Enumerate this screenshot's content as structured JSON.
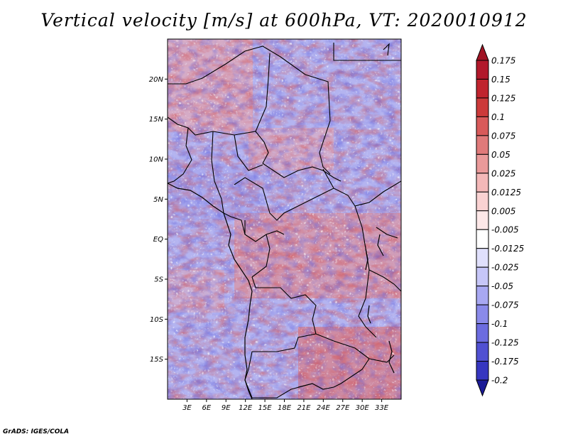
{
  "title": "Vertical velocity [m/s] at 600hPa, VT: 2020010912",
  "credit": "GrADS: IGES/COLA",
  "map": {
    "lon_range": [
      0,
      36
    ],
    "lat_range": [
      -20,
      25
    ],
    "lat_ticks": [
      {
        "lat": 20,
        "label": "20N"
      },
      {
        "lat": 15,
        "label": "15N"
      },
      {
        "lat": 10,
        "label": "10N"
      },
      {
        "lat": 5,
        "label": "5N"
      },
      {
        "lat": 0,
        "label": "EQ"
      },
      {
        "lat": -5,
        "label": "5S"
      },
      {
        "lat": -10,
        "label": "10S"
      },
      {
        "lat": -15,
        "label": "15S"
      }
    ],
    "lon_ticks": [
      {
        "lon": 3,
        "label": "3E"
      },
      {
        "lon": 6,
        "label": "6E"
      },
      {
        "lon": 9,
        "label": "9E"
      },
      {
        "lon": 12,
        "label": "12E"
      },
      {
        "lon": 15,
        "label": "15E"
      },
      {
        "lon": 18,
        "label": "18E"
      },
      {
        "lon": 21,
        "label": "21E"
      },
      {
        "lon": 24,
        "label": "24E"
      },
      {
        "lon": 27,
        "label": "27E"
      },
      {
        "lon": 30,
        "label": "30E"
      },
      {
        "lon": 33,
        "label": "33E"
      }
    ]
  },
  "colorbar": {
    "levels": [
      {
        "label": "0.175",
        "color": "#b2182b"
      },
      {
        "label": "0.15",
        "color": "#c0242e"
      },
      {
        "label": "0.125",
        "color": "#cc3a3a"
      },
      {
        "label": "0.1",
        "color": "#d85a5a"
      },
      {
        "label": "0.075",
        "color": "#e07a7a"
      },
      {
        "label": "0.05",
        "color": "#ea9a9a"
      },
      {
        "label": "0.025",
        "color": "#f4b8b8"
      },
      {
        "label": "0.0125",
        "color": "#fad2d2"
      },
      {
        "label": "0.005",
        "color": "#fde8e8"
      },
      {
        "label": "-0.005",
        "color": "#ffffff"
      },
      {
        "label": "-0.0125",
        "color": "#e0e0fc"
      },
      {
        "label": "-0.025",
        "color": "#c6c6f8"
      },
      {
        "label": "-0.05",
        "color": "#a8a8f2"
      },
      {
        "label": "-0.075",
        "color": "#8a8aea"
      },
      {
        "label": "-0.1",
        "color": "#6c6ce0"
      },
      {
        "label": "-0.125",
        "color": "#5050d2"
      },
      {
        "label": "-0.175",
        "color": "#3636c0"
      },
      {
        "label": "-0.2",
        "color": "#2020aa"
      }
    ],
    "top_arrow_color": "#a01424",
    "bottom_arrow_color": "#1a1a96"
  }
}
